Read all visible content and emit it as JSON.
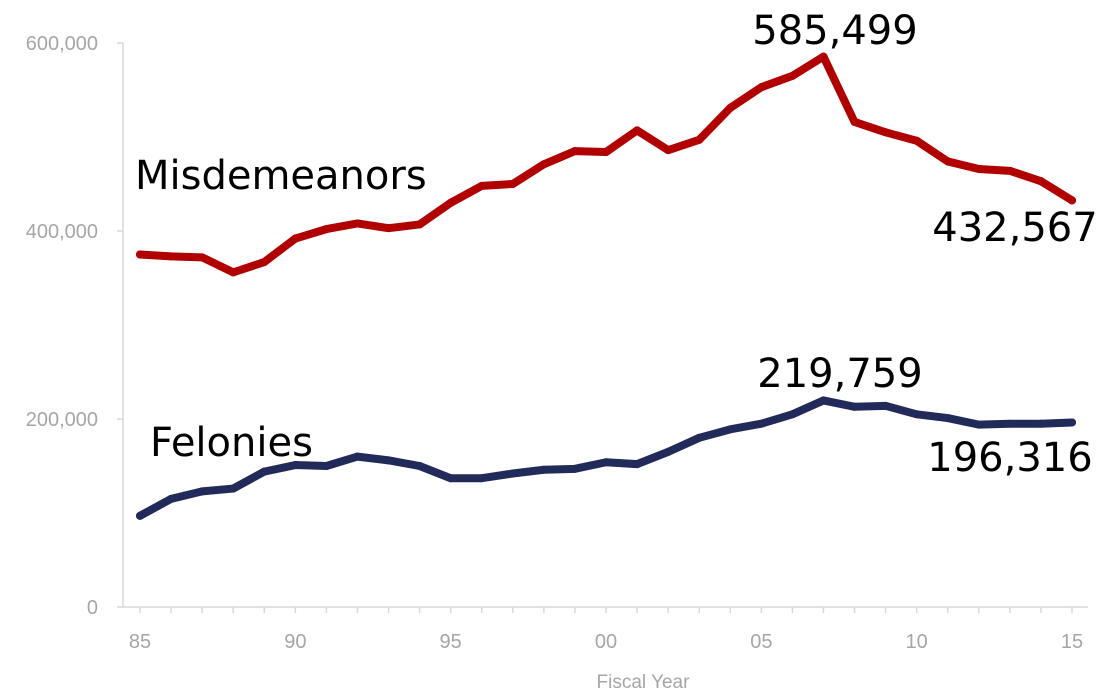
{
  "chart_data": {
    "type": "line",
    "title": "",
    "xlabel": "Fiscal Year",
    "ylabel": "",
    "x": [
      1985,
      1986,
      1987,
      1988,
      1989,
      1990,
      1991,
      1992,
      1993,
      1994,
      1995,
      1996,
      1997,
      1998,
      1999,
      2000,
      2001,
      2002,
      2003,
      2004,
      2005,
      2006,
      2007,
      2008,
      2009,
      2010,
      2011,
      2012,
      2013,
      2014,
      2015
    ],
    "x_tick_values": [
      1985,
      1990,
      1995,
      2000,
      2005,
      2010,
      2015
    ],
    "x_tick_labels": [
      "85",
      "90",
      "95",
      "00",
      "05",
      "10",
      "15"
    ],
    "ylim": [
      0,
      600000
    ],
    "y_tick_values": [
      0,
      200000,
      400000,
      600000
    ],
    "y_tick_labels": [
      "0",
      "200,000",
      "400,000",
      "600,000"
    ],
    "grid": false,
    "series": [
      {
        "name": "Misdemeanors",
        "color": "#b00000",
        "values": [
          375000,
          373000,
          372000,
          356000,
          367000,
          392000,
          402000,
          408000,
          403000,
          407000,
          430000,
          448000,
          450000,
          471000,
          485000,
          484000,
          507000,
          486000,
          497000,
          531000,
          553000,
          565000,
          585499,
          516000,
          505000,
          496000,
          474000,
          466000,
          464000,
          453000,
          432567
        ]
      },
      {
        "name": "Felonies",
        "color": "#222a5a",
        "values": [
          97000,
          115000,
          123000,
          126000,
          144000,
          151000,
          150000,
          160000,
          156000,
          150000,
          137000,
          137000,
          142000,
          146000,
          147000,
          154000,
          152000,
          165000,
          180000,
          189000,
          195000,
          205000,
          219759,
          213000,
          214000,
          205000,
          201000,
          194000,
          195000,
          195000,
          196316
        ]
      }
    ],
    "annotations": [
      {
        "text": "585,499",
        "series": "Misdemeanors",
        "x": 2007,
        "y": 585499
      },
      {
        "text": "432,567",
        "series": "Misdemeanors",
        "x": 2015,
        "y": 432567
      },
      {
        "text": "219,759",
        "series": "Felonies",
        "x": 2007,
        "y": 219759
      },
      {
        "text": "196,316",
        "series": "Felonies",
        "x": 2015,
        "y": 196316
      }
    ]
  }
}
